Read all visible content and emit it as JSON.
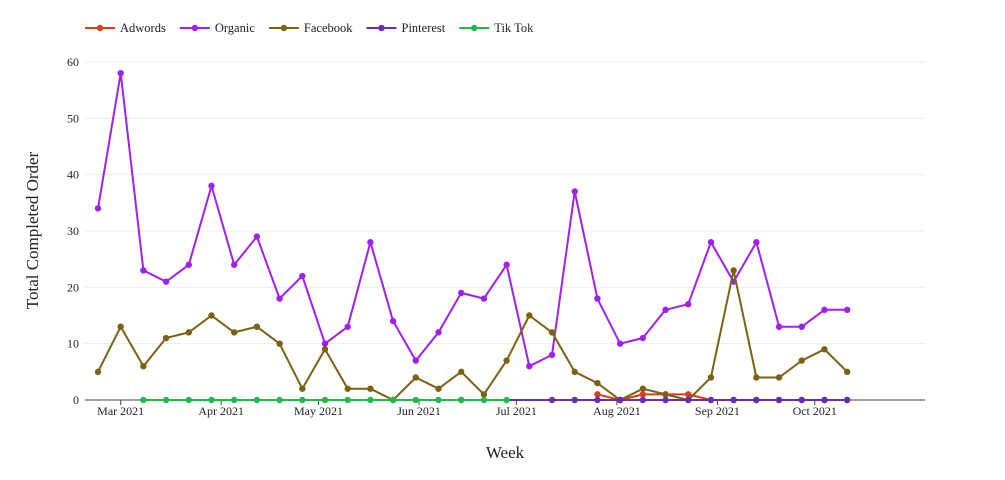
{
  "chart_data": {
    "type": "line",
    "title": "",
    "xlabel": "Week",
    "ylabel": "Total  Completed Order",
    "ylim": [
      0,
      63
    ],
    "yticks": [
      0,
      10,
      20,
      30,
      40,
      50,
      60
    ],
    "xlim": [
      "2021-02-18",
      "2021-11-04"
    ],
    "xticks": [
      {
        "date": "2021-03-01",
        "label": "Mar 2021"
      },
      {
        "date": "2021-04-01",
        "label": "Apr 2021"
      },
      {
        "date": "2021-05-01",
        "label": "May 2021"
      },
      {
        "date": "2021-06-01",
        "label": "Jun 2021"
      },
      {
        "date": "2021-07-01",
        "label": "Jul 2021"
      },
      {
        "date": "2021-08-01",
        "label": "Aug 2021"
      },
      {
        "date": "2021-09-01",
        "label": "Sep 2021"
      },
      {
        "date": "2021-10-01",
        "label": "Oct 2021"
      }
    ],
    "grid": true,
    "legend_position": "top-left",
    "series": [
      {
        "name": "Adwords",
        "color": "#d8401c",
        "x": [
          "2021-07-26",
          "2021-08-02",
          "2021-08-09",
          "2021-08-16",
          "2021-08-23",
          "2021-08-30",
          "2021-09-06",
          "2021-09-13",
          "2021-09-20",
          "2021-09-27",
          "2021-10-04",
          "2021-10-11"
        ],
        "y": [
          1,
          0,
          1,
          1,
          1,
          0,
          0,
          0,
          0,
          0,
          0,
          0
        ]
      },
      {
        "name": "Organic",
        "color": "#a020f0",
        "x": [
          "2021-02-22",
          "2021-03-01",
          "2021-03-08",
          "2021-03-15",
          "2021-03-22",
          "2021-03-29",
          "2021-04-05",
          "2021-04-12",
          "2021-04-19",
          "2021-04-26",
          "2021-05-03",
          "2021-05-10",
          "2021-05-17",
          "2021-05-24",
          "2021-05-31",
          "2021-06-07",
          "2021-06-14",
          "2021-06-21",
          "2021-06-28",
          "2021-07-05",
          "2021-07-12",
          "2021-07-19",
          "2021-07-26",
          "2021-08-02",
          "2021-08-09",
          "2021-08-16",
          "2021-08-23",
          "2021-08-30",
          "2021-09-06",
          "2021-09-13",
          "2021-09-20",
          "2021-09-27",
          "2021-10-04",
          "2021-10-11"
        ],
        "y": [
          34,
          58,
          23,
          21,
          24,
          38,
          24,
          29,
          18,
          22,
          10,
          13,
          28,
          14,
          7,
          12,
          19,
          18,
          24,
          6,
          8,
          37,
          18,
          10,
          11,
          16,
          17,
          28,
          21,
          28,
          13,
          13,
          16,
          16
        ]
      },
      {
        "name": "Facebook",
        "color": "#7d6112",
        "x": [
          "2021-02-22",
          "2021-03-01",
          "2021-03-08",
          "2021-03-15",
          "2021-03-22",
          "2021-03-29",
          "2021-04-05",
          "2021-04-12",
          "2021-04-19",
          "2021-04-26",
          "2021-05-03",
          "2021-05-10",
          "2021-05-17",
          "2021-05-24",
          "2021-05-31",
          "2021-06-07",
          "2021-06-14",
          "2021-06-21",
          "2021-06-28",
          "2021-07-05",
          "2021-07-12",
          "2021-07-19",
          "2021-07-26",
          "2021-08-02",
          "2021-08-09",
          "2021-08-16",
          "2021-08-23",
          "2021-08-30",
          "2021-09-06",
          "2021-09-13",
          "2021-09-20",
          "2021-09-27",
          "2021-10-04",
          "2021-10-11"
        ],
        "y": [
          5,
          13,
          6,
          11,
          12,
          15,
          12,
          13,
          10,
          2,
          9,
          2,
          2,
          0,
          4,
          2,
          5,
          1,
          7,
          15,
          12,
          5,
          3,
          0,
          2,
          1,
          0,
          4,
          23,
          4,
          4,
          7,
          9,
          5
        ]
      },
      {
        "name": "Pinterest",
        "color": "#6a2bb8",
        "x": [
          "2021-06-14",
          "2021-07-12",
          "2021-07-19",
          "2021-07-26",
          "2021-08-02",
          "2021-08-09",
          "2021-08-16",
          "2021-08-23",
          "2021-08-30",
          "2021-09-06",
          "2021-09-13",
          "2021-09-20",
          "2021-09-27",
          "2021-10-04",
          "2021-10-11"
        ],
        "y": [
          0,
          0,
          0,
          0,
          0,
          0,
          0,
          0,
          0,
          0,
          0,
          0,
          0,
          0,
          0
        ]
      },
      {
        "name": "Tik Tok",
        "color": "#22b84c",
        "x": [
          "2021-03-08",
          "2021-03-15",
          "2021-03-22",
          "2021-03-29",
          "2021-04-05",
          "2021-04-12",
          "2021-04-19",
          "2021-04-26",
          "2021-05-03",
          "2021-05-10",
          "2021-05-17",
          "2021-05-24",
          "2021-05-31",
          "2021-06-07",
          "2021-06-14",
          "2021-06-21",
          "2021-06-28"
        ],
        "y": [
          0,
          0,
          0,
          0,
          0,
          0,
          0,
          0,
          0,
          0,
          0,
          0,
          0,
          0,
          0,
          0,
          0
        ]
      }
    ]
  }
}
